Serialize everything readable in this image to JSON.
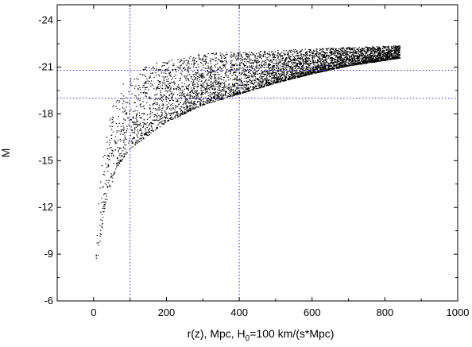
{
  "chart_data": {
    "type": "scatter",
    "xlabel": {
      "main": "r(z), Mpc, H",
      "sub": "0",
      "rest": "=100 km/(s*Mpc)"
    },
    "ylabel": "M",
    "xlim": [
      -100,
      1000
    ],
    "ylim": [
      -6,
      -25
    ],
    "y_inverted": true,
    "x_ticks": [
      0,
      200,
      400,
      600,
      800,
      1000
    ],
    "x_tick_labels": [
      "0",
      "200",
      "400",
      "600",
      "800",
      "1000"
    ],
    "y_ticks": [
      -24,
      -21,
      -18,
      -15,
      -12,
      -9,
      -6
    ],
    "y_tick_labels": [
      "-24",
      "-21",
      "-18",
      "-15",
      "-12",
      "-9",
      "-6"
    ],
    "reference_lines": {
      "vertical_x": [
        100,
        400
      ],
      "horizontal_y": [
        -20.8,
        -19.0
      ],
      "style": "dotted",
      "color": "#2b2bd0"
    },
    "point_color": "#000000",
    "distribution": {
      "description": "dense cloud of galaxies; faint limit follows a magnitude-limited curve rising from about -8 near r=0 to about -21.7 at r≈840",
      "x_range": [
        5,
        840
      ],
      "bright_edge": [
        [
          5,
          -10
        ],
        [
          20,
          -15
        ],
        [
          50,
          -18.5
        ],
        [
          80,
          -20
        ],
        [
          150,
          -21.2
        ],
        [
          300,
          -21.9
        ],
        [
          500,
          -22.1
        ],
        [
          700,
          -22.3
        ],
        [
          840,
          -22.4
        ]
      ],
      "faint_edge": [
        [
          5,
          -8
        ],
        [
          30,
          -12
        ],
        [
          60,
          -14.5
        ],
        [
          100,
          -15.8
        ],
        [
          200,
          -17.5
        ],
        [
          300,
          -18.6
        ],
        [
          400,
          -19.3
        ],
        [
          500,
          -20.0
        ],
        [
          600,
          -20.6
        ],
        [
          700,
          -21.1
        ],
        [
          840,
          -21.6
        ]
      ]
    }
  }
}
